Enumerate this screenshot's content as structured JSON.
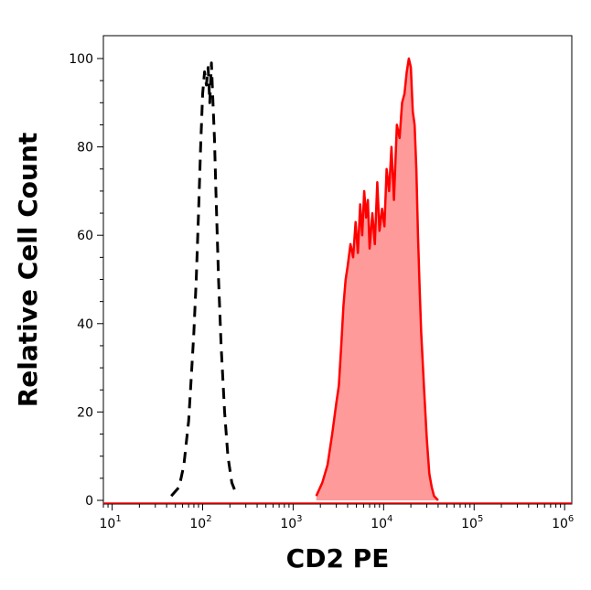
{
  "chart_data": {
    "type": "area",
    "title": "",
    "xlabel": "CD2 PE",
    "ylabel": "Relative Cell Count",
    "x_scale": "log",
    "xlim": [
      8,
      1200000
    ],
    "ylim": [
      0,
      100
    ],
    "x_ticks": [
      {
        "value": 10,
        "base": "10",
        "exp": "1"
      },
      {
        "value": 100,
        "base": "10",
        "exp": "2"
      },
      {
        "value": 1000,
        "base": "10",
        "exp": "3"
      },
      {
        "value": 10000,
        "base": "10",
        "exp": "4"
      },
      {
        "value": 100000,
        "base": "10",
        "exp": "5"
      },
      {
        "value": 1000000,
        "base": "10",
        "exp": "6"
      }
    ],
    "y_ticks": [
      0,
      20,
      40,
      60,
      80,
      100
    ],
    "grid": false,
    "legend": "none",
    "series": [
      {
        "style": "dashed",
        "color": "#000000",
        "fill": false,
        "x": [
          45,
          55,
          62,
          70,
          75,
          80,
          85,
          90,
          95,
          100,
          105,
          110,
          115,
          120,
          125,
          130,
          135,
          140,
          150,
          160,
          175,
          190,
          210,
          240
        ],
        "y": [
          1,
          3,
          8,
          18,
          28,
          38,
          50,
          65,
          80,
          92,
          97,
          94,
          98,
          90,
          99,
          90,
          82,
          70,
          50,
          35,
          20,
          10,
          4,
          1
        ]
      },
      {
        "style": "solid",
        "color": "#ff0000",
        "fill": true,
        "fill_color": "#ff9a9a",
        "x": [
          1800,
          2100,
          2400,
          2700,
          3000,
          3200,
          3400,
          3600,
          3800,
          4000,
          4300,
          4600,
          4900,
          5200,
          5500,
          5800,
          6100,
          6400,
          6700,
          7000,
          7500,
          8000,
          8500,
          9000,
          9600,
          10200,
          10800,
          11500,
          12200,
          13000,
          14000,
          15000,
          16000,
          17000,
          18000,
          19000,
          20000,
          21000,
          22000,
          23000,
          24000,
          25000,
          26000,
          28000,
          30000,
          32000,
          34000,
          36000,
          38000,
          40000
        ],
        "y": [
          1,
          4,
          8,
          15,
          22,
          26,
          35,
          44,
          50,
          53,
          58,
          55,
          63,
          56,
          67,
          60,
          70,
          64,
          68,
          57,
          65,
          58,
          72,
          61,
          66,
          62,
          75,
          70,
          80,
          68,
          85,
          82,
          90,
          92,
          97,
          100,
          98,
          88,
          85,
          75,
          60,
          48,
          38,
          25,
          14,
          6,
          3,
          1,
          0.5,
          0
        ]
      }
    ]
  }
}
